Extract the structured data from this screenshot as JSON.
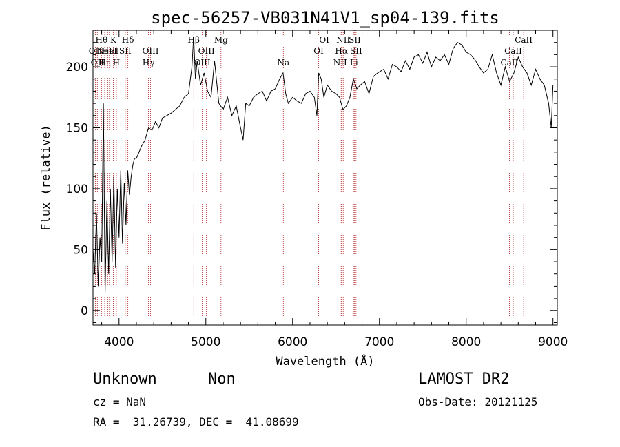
{
  "chart_data": {
    "type": "line",
    "title": "spec-56257-VB031N41V1_sp04-139.fits",
    "xlabel": "Wavelength (Å)",
    "ylabel": "Flux (relative)",
    "xlim": [
      3700,
      9050
    ],
    "ylim": [
      -12,
      230
    ],
    "xticks": [
      4000,
      5000,
      6000,
      7000,
      8000,
      9000
    ],
    "yticks": [
      0,
      50,
      100,
      150,
      200
    ],
    "minor_x_step": 200,
    "minor_y_step": 10,
    "line_color": "#000000",
    "marker_color": "#b02020",
    "series": [
      {
        "x": [
          3700,
          3720,
          3740,
          3760,
          3780,
          3800,
          3820,
          3840,
          3860,
          3880,
          3900,
          3920,
          3940,
          3960,
          3980,
          4000,
          4020,
          4040,
          4060,
          4080,
          4100,
          4120,
          4140,
          4160,
          4180,
          4200,
          4230,
          4260,
          4300,
          4340,
          4380,
          4420,
          4460,
          4500,
          4550,
          4600,
          4650,
          4700,
          4750,
          4800,
          4840,
          4860,
          4880,
          4900,
          4940,
          4980,
          5020,
          5060,
          5100,
          5150,
          5200,
          5250,
          5300,
          5350,
          5400,
          5430,
          5460,
          5500,
          5550,
          5600,
          5650,
          5700,
          5750,
          5800,
          5850,
          5890,
          5920,
          5950,
          6000,
          6050,
          6100,
          6150,
          6200,
          6250,
          6280,
          6300,
          6330,
          6360,
          6400,
          6450,
          6500,
          6540,
          6560,
          6580,
          6620,
          6660,
          6700,
          6740,
          6780,
          6830,
          6880,
          6930,
          6980,
          7050,
          7100,
          7150,
          7200,
          7250,
          7300,
          7350,
          7400,
          7450,
          7500,
          7550,
          7600,
          7650,
          7700,
          7750,
          7800,
          7850,
          7900,
          7950,
          8000,
          8050,
          8100,
          8150,
          8200,
          8250,
          8300,
          8350,
          8400,
          8450,
          8500,
          8550,
          8600,
          8650,
          8700,
          8750,
          8800,
          8850,
          8900,
          8950,
          8980,
          9000
        ],
        "y": [
          50,
          30,
          80,
          20,
          60,
          40,
          170,
          15,
          90,
          30,
          100,
          40,
          110,
          35,
          100,
          60,
          115,
          55,
          105,
          70,
          115,
          95,
          110,
          120,
          125,
          125,
          130,
          135,
          140,
          150,
          148,
          155,
          150,
          158,
          160,
          162,
          165,
          168,
          175,
          178,
          200,
          225,
          190,
          205,
          185,
          195,
          180,
          175,
          205,
          170,
          165,
          175,
          160,
          168,
          150,
          140,
          170,
          168,
          175,
          178,
          180,
          172,
          180,
          182,
          190,
          195,
          178,
          170,
          175,
          172,
          170,
          178,
          180,
          175,
          160,
          195,
          190,
          175,
          185,
          180,
          178,
          175,
          170,
          165,
          168,
          175,
          190,
          182,
          185,
          188,
          178,
          192,
          195,
          198,
          190,
          202,
          200,
          196,
          205,
          198,
          208,
          210,
          203,
          212,
          200,
          208,
          205,
          210,
          202,
          215,
          220,
          218,
          212,
          210,
          206,
          200,
          195,
          198,
          210,
          195,
          185,
          200,
          188,
          195,
          208,
          200,
          195,
          185,
          198,
          190,
          185,
          170,
          150,
          185
        ]
      }
    ],
    "spectral_lines": [
      {
        "wavelength": 3727,
        "label": "OII",
        "row": 2
      },
      {
        "wavelength": 3750,
        "label": "OII",
        "row": 3
      },
      {
        "wavelength": 3798,
        "label": "Hθ",
        "row": 1
      },
      {
        "wavelength": 3835,
        "label": "Hη",
        "row": 3
      },
      {
        "wavelength": 3869,
        "label": "NeIII",
        "row": 2
      },
      {
        "wavelength": 3889,
        "label": "HeI",
        "row": 2
      },
      {
        "wavelength": 3934,
        "label": "K",
        "row": 1
      },
      {
        "wavelength": 3969,
        "label": "H",
        "row": 3
      },
      {
        "wavelength": 4072,
        "label": "SII",
        "row": 2
      },
      {
        "wavelength": 4102,
        "label": "Hδ",
        "row": 1
      },
      {
        "wavelength": 4340,
        "label": "Hγ",
        "row": 3
      },
      {
        "wavelength": 4363,
        "label": "OIII",
        "row": 2
      },
      {
        "wavelength": 4861,
        "label": "Hβ",
        "row": 1
      },
      {
        "wavelength": 4959,
        "label": "OIII",
        "row": 3
      },
      {
        "wavelength": 5007,
        "label": "OIII",
        "row": 2
      },
      {
        "wavelength": 5175,
        "label": "Mg",
        "row": 1
      },
      {
        "wavelength": 5893,
        "label": "Na",
        "row": 3
      },
      {
        "wavelength": 6300,
        "label": "OI",
        "row": 2
      },
      {
        "wavelength": 6364,
        "label": "OI",
        "row": 1
      },
      {
        "wavelength": 6548,
        "label": "NII",
        "row": 3
      },
      {
        "wavelength": 6563,
        "label": "Hα",
        "row": 2
      },
      {
        "wavelength": 6583,
        "label": "NII",
        "row": 1
      },
      {
        "wavelength": 6707,
        "label": "Li",
        "row": 3
      },
      {
        "wavelength": 6716,
        "label": "SII",
        "row": 1
      },
      {
        "wavelength": 6731,
        "label": "SII",
        "row": 2
      },
      {
        "wavelength": 8498,
        "label": "CaII",
        "row": 3
      },
      {
        "wavelength": 8542,
        "label": "CaII",
        "row": 2
      },
      {
        "wavelength": 8662,
        "label": "CaII",
        "row": 1
      }
    ]
  },
  "info": {
    "class_label": "Unknown",
    "subclass_label": "Non",
    "survey": "LAMOST DR2",
    "cz": "cz = NaN",
    "obs_date": "Obs-Date: 20121125",
    "coords": "RA =  31.26739, DEC =  41.08699"
  }
}
